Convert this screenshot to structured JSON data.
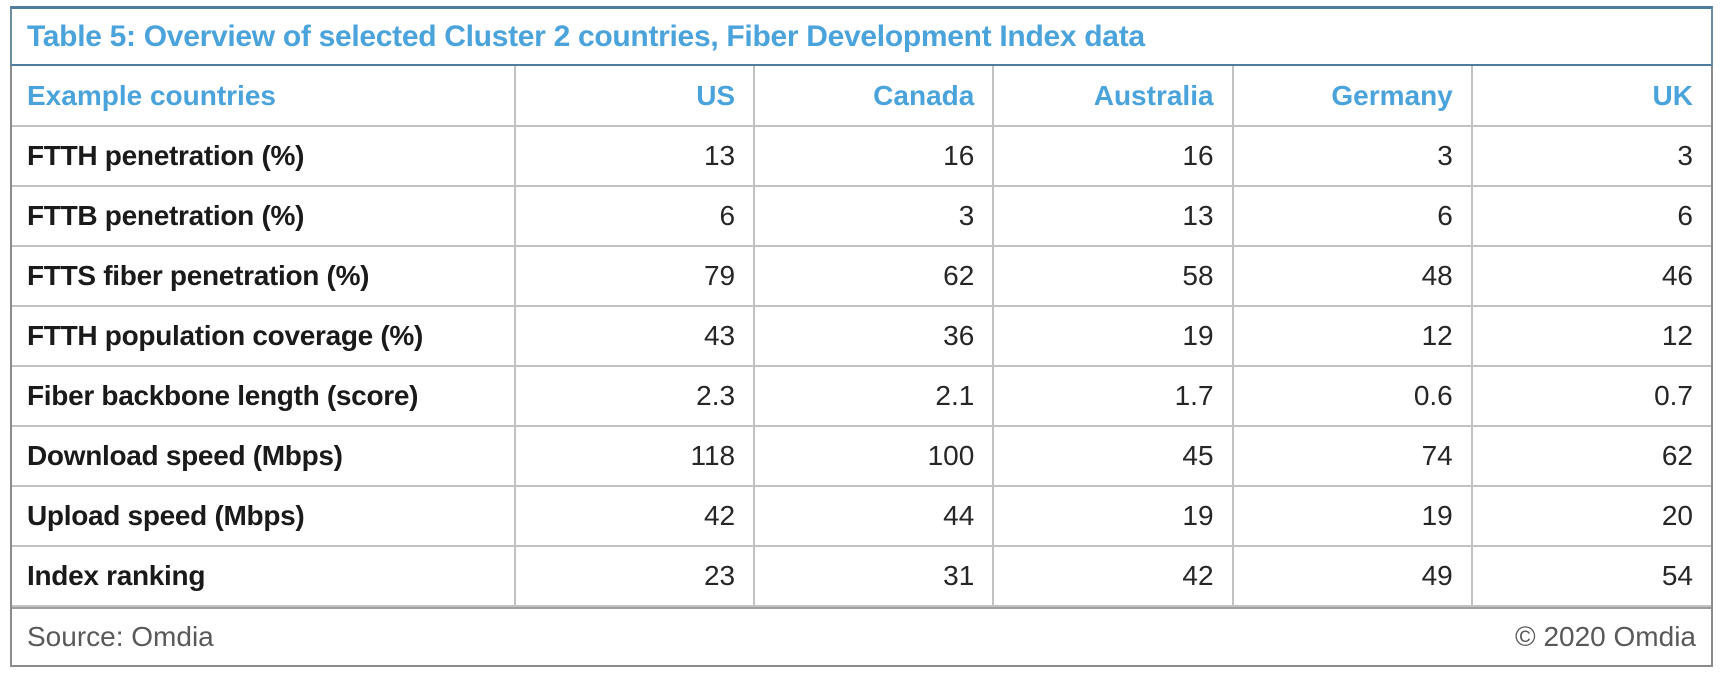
{
  "colors": {
    "accent_blue": "#4BA3DC",
    "title_border_blue": "#4E7D9E",
    "outer_border_gray": "#8C8C8C",
    "grid_line_gray": "#C2C2C2",
    "label_text": "#1A1A1A",
    "footer_text_gray": "#595959",
    "background": "#FFFFFF"
  },
  "table": {
    "title": "Table 5: Overview of selected Cluster 2 countries, Fiber Development Index data",
    "header": {
      "label": "Example countries",
      "columns": [
        "US",
        "Canada",
        "Australia",
        "Germany",
        "UK"
      ]
    },
    "rows": [
      {
        "label": "FTTH penetration (%)",
        "values": [
          "13",
          "16",
          "16",
          "3",
          "3"
        ]
      },
      {
        "label": "FTTB penetration (%)",
        "values": [
          "6",
          "3",
          "13",
          "6",
          "6"
        ]
      },
      {
        "label": "FTTS fiber penetration (%)",
        "values": [
          "79",
          "62",
          "58",
          "48",
          "46"
        ]
      },
      {
        "label": "FTTH population coverage (%)",
        "values": [
          "43",
          "36",
          "19",
          "12",
          "12"
        ]
      },
      {
        "label": "Fiber backbone length (score)",
        "values": [
          "2.3",
          "2.1",
          "1.7",
          "0.6",
          "0.7"
        ]
      },
      {
        "label": "Download speed (Mbps)",
        "values": [
          "118",
          "100",
          "45",
          "74",
          "62"
        ]
      },
      {
        "label": "Upload speed (Mbps)",
        "values": [
          "42",
          "44",
          "19",
          "19",
          "20"
        ]
      },
      {
        "label": "Index ranking",
        "values": [
          "23",
          "31",
          "42",
          "49",
          "54"
        ]
      }
    ],
    "footer": {
      "source": "Source: Omdia",
      "copyright": "© 2020 Omdia"
    }
  },
  "chart_data": {
    "type": "table",
    "title": "Table 5: Overview of selected Cluster 2 countries, Fiber Development Index data",
    "categories": [
      "US",
      "Canada",
      "Australia",
      "Germany",
      "UK"
    ],
    "series": [
      {
        "name": "FTTH penetration (%)",
        "values": [
          13,
          16,
          16,
          3,
          3
        ]
      },
      {
        "name": "FTTB penetration (%)",
        "values": [
          6,
          3,
          13,
          6,
          6
        ]
      },
      {
        "name": "FTTS fiber penetration (%)",
        "values": [
          79,
          62,
          58,
          48,
          46
        ]
      },
      {
        "name": "FTTH population coverage (%)",
        "values": [
          43,
          36,
          19,
          12,
          12
        ]
      },
      {
        "name": "Fiber backbone length (score)",
        "values": [
          2.3,
          2.1,
          1.7,
          0.6,
          0.7
        ]
      },
      {
        "name": "Download speed (Mbps)",
        "values": [
          118,
          100,
          45,
          74,
          62
        ]
      },
      {
        "name": "Upload speed (Mbps)",
        "values": [
          42,
          44,
          19,
          19,
          20
        ]
      },
      {
        "name": "Index ranking",
        "values": [
          23,
          31,
          42,
          49,
          54
        ]
      }
    ],
    "source": "Source: Omdia",
    "copyright": "© 2020 Omdia"
  }
}
